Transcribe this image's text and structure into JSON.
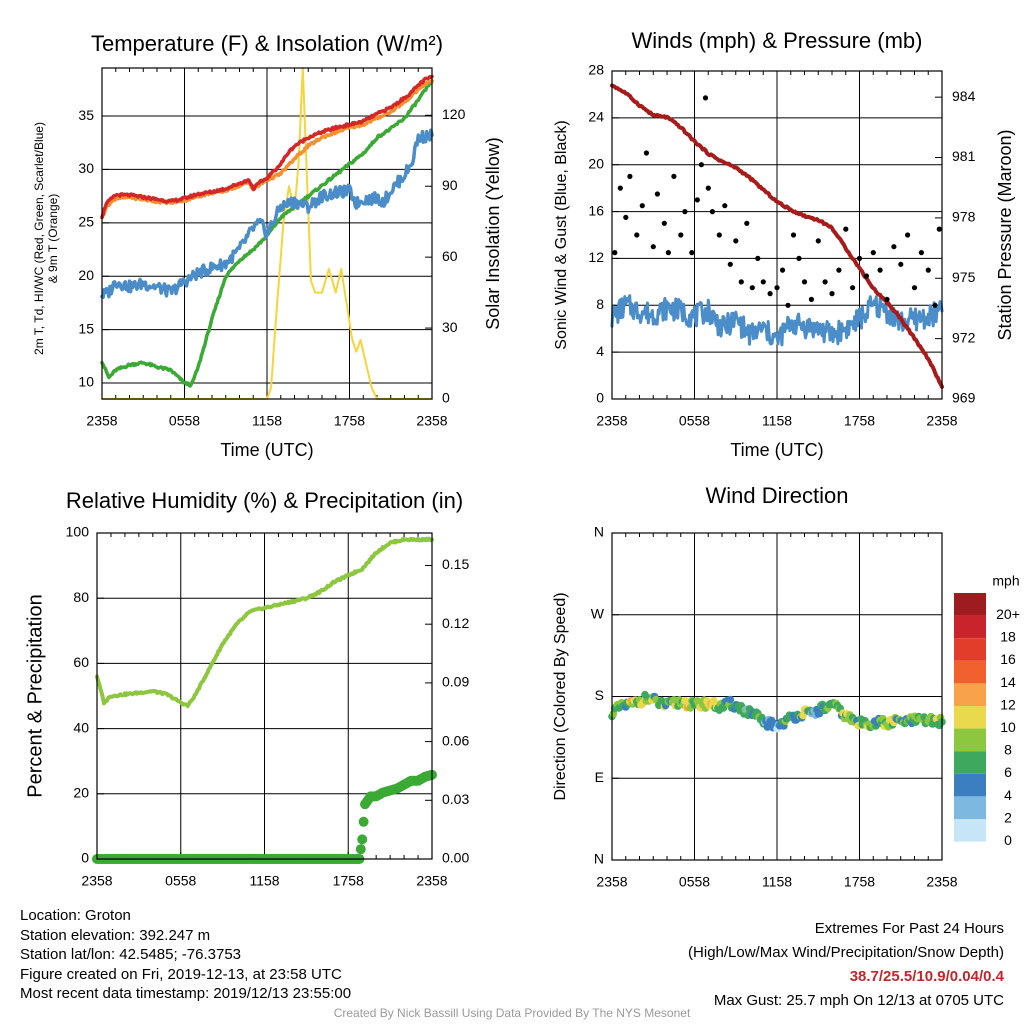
{
  "chart_data": [
    {
      "type": "line",
      "title": "Temperature (F) & Insolation (W/m²)",
      "xlabel": "Time (UTC)",
      "ylabel_left": "2m T, Td, HI/WC (Red, Green, Scarlet/Blue) & 9m T (Orange)",
      "ylabel_right": "Solar Insolation (Yellow)",
      "x_ticks": [
        "2358",
        "0558",
        "1158",
        "1758",
        "2358"
      ],
      "x_range_hours": [
        0,
        24
      ],
      "ylim_left": [
        8.5,
        39.5
      ],
      "yticks_left": [
        10,
        15,
        20,
        25,
        30,
        35
      ],
      "ylim_right": [
        0,
        140
      ],
      "yticks_right": [
        0,
        30,
        60,
        90,
        120
      ],
      "grid": true,
      "series": [
        {
          "name": "2m T",
          "color": "#d62728",
          "axis": "left",
          "x": [
            0,
            0.3,
            1,
            2,
            3,
            4,
            5,
            6,
            7,
            8,
            9,
            10,
            10.7,
            11,
            11.5,
            12,
            13,
            13.5,
            14,
            15,
            16,
            17,
            18,
            19,
            20,
            21,
            22,
            22.5,
            23,
            23.5,
            24
          ],
          "y": [
            25.6,
            26.8,
            27.6,
            27.6,
            27.4,
            27.2,
            27.0,
            27.3,
            27.7,
            27.9,
            28.2,
            28.7,
            29.0,
            28.2,
            28.8,
            29.2,
            30.5,
            31.5,
            32.2,
            33.0,
            33.5,
            33.9,
            34.2,
            34.5,
            35.2,
            35.8,
            36.7,
            37.2,
            37.9,
            38.4,
            38.7
          ]
        },
        {
          "name": "9m T",
          "color": "#f3912f",
          "axis": "left",
          "x": [
            0,
            0.3,
            1,
            2,
            3,
            4,
            5,
            6,
            7,
            8,
            9,
            10,
            10.7,
            11,
            11.5,
            12,
            13,
            13.5,
            14,
            15,
            16,
            17,
            18,
            19,
            20,
            21,
            22,
            22.5,
            23,
            23.5,
            24
          ],
          "y": [
            25.4,
            26.5,
            27.3,
            27.4,
            27.2,
            27.0,
            26.9,
            27.1,
            27.5,
            27.8,
            28.0,
            28.5,
            28.8,
            28.1,
            28.6,
            29.0,
            29.6,
            30.3,
            31.0,
            32.2,
            33.0,
            33.5,
            33.9,
            34.2,
            34.8,
            35.4,
            36.3,
            36.9,
            37.5,
            38.0,
            38.3
          ]
        },
        {
          "name": "Td",
          "color": "#3aaa35",
          "axis": "left",
          "x": [
            0,
            0.5,
            1,
            2,
            3,
            4,
            5,
            6,
            6.5,
            7,
            8,
            9,
            10,
            11,
            12,
            13,
            14,
            15,
            16,
            17,
            18,
            19,
            19.5,
            20,
            21,
            22,
            23,
            24
          ],
          "y": [
            12.0,
            10.5,
            11.2,
            11.7,
            11.9,
            11.5,
            11.2,
            10.0,
            9.8,
            11.5,
            16.0,
            20.0,
            21.5,
            22.5,
            23.8,
            25.5,
            26.5,
            27.5,
            28.5,
            29.5,
            30.5,
            31.5,
            32.2,
            33.0,
            33.8,
            34.8,
            36.5,
            38.3
          ]
        },
        {
          "name": "HI/WC",
          "color": "#4a8dc8",
          "axis": "left",
          "x": [
            0,
            0.5,
            1,
            2,
            3,
            4,
            5,
            6,
            7,
            8,
            9,
            10,
            10.5,
            11,
            11.5,
            12,
            13,
            14,
            15,
            16,
            17,
            18,
            18.5,
            19,
            20,
            20.5,
            21,
            22,
            22.5,
            23,
            24
          ],
          "y": [
            18.2,
            18.5,
            19.5,
            19.0,
            19.3,
            19.0,
            18.5,
            19.5,
            20.3,
            20.8,
            21.2,
            22.5,
            23.5,
            24.5,
            25.0,
            24.0,
            26.5,
            27.0,
            26.5,
            27.5,
            27.8,
            28.0,
            26.8,
            27.2,
            27.3,
            27.0,
            28.0,
            29.5,
            30.5,
            33.0,
            33.2
          ]
        },
        {
          "name": "Solar Insolation",
          "color": "#f5d53b",
          "axis": "right",
          "x": [
            0,
            12,
            12.3,
            12.6,
            13,
            13.2,
            13.6,
            14,
            14.3,
            14.6,
            15,
            15.2,
            15.5,
            16,
            16.5,
            17,
            17.4,
            17.8,
            18.2,
            18.5,
            18.8,
            19.2,
            19.6,
            20,
            24
          ],
          "y": [
            0,
            0,
            5,
            30,
            60,
            75,
            90,
            80,
            100,
            140,
            80,
            50,
            45,
            45,
            55,
            45,
            55,
            40,
            25,
            20,
            25,
            15,
            5,
            0,
            0
          ]
        }
      ]
    },
    {
      "type": "line",
      "title": "Winds (mph) & Pressure (mb)",
      "xlabel": "Time (UTC)",
      "ylabel_left": "Sonic Wind & Gust (Blue, Black)",
      "ylabel_right": "Station Pressure (Maroon)",
      "x_ticks": [
        "2358",
        "0558",
        "1158",
        "1758",
        "2358"
      ],
      "x_range_hours": [
        0,
        24
      ],
      "ylim_left": [
        0,
        28
      ],
      "yticks_left": [
        0,
        4,
        8,
        12,
        16,
        20,
        24,
        28
      ],
      "ylim_right": [
        969,
        985.3
      ],
      "yticks_right": [
        969,
        972,
        975,
        978,
        981,
        984
      ],
      "grid": true,
      "series": [
        {
          "name": "Sonic Wind",
          "color": "#4a8dc8",
          "axis": "left",
          "x": [
            0,
            1,
            2,
            3,
            4,
            5,
            6,
            7,
            8,
            9,
            10,
            11,
            12,
            13,
            14,
            15,
            16,
            17,
            18,
            19,
            20,
            21,
            22,
            23,
            24
          ],
          "y": [
            7.0,
            8.0,
            7.5,
            7.2,
            7.8,
            7.5,
            7.0,
            7.6,
            6.0,
            6.8,
            5.5,
            6.0,
            5.0,
            6.5,
            6.2,
            6.0,
            5.5,
            6.0,
            6.8,
            8.0,
            7.5,
            6.5,
            6.8,
            7.0,
            7.5
          ]
        },
        {
          "name": "Gust",
          "color": "#000000",
          "axis": "left",
          "x": [
            0.2,
            0.6,
            1.0,
            1.3,
            1.8,
            2.2,
            2.5,
            3.0,
            3.3,
            3.8,
            4.1,
            4.5,
            5.0,
            5.3,
            5.8,
            6.2,
            6.5,
            6.8,
            7.0,
            7.3,
            7.8,
            8.2,
            8.6,
            9.0,
            9.4,
            9.8,
            10.2,
            10.6,
            11.0,
            11.5,
            12.0,
            12.4,
            12.8,
            13.2,
            13.6,
            14.0,
            14.5,
            15.0,
            15.5,
            16.0,
            16.5,
            17.0,
            17.5,
            18.0,
            18.5,
            19.0,
            19.5,
            20.0,
            20.5,
            21.0,
            21.5,
            22.0,
            22.5,
            23.0,
            23.5,
            23.8
          ],
          "y": [
            12.5,
            18.0,
            15.5,
            19.0,
            14.0,
            16.5,
            21.0,
            13.0,
            17.5,
            15.0,
            12.5,
            19.0,
            14.0,
            16.0,
            12.5,
            17.0,
            20.0,
            25.7,
            18.0,
            16.0,
            14.0,
            16.5,
            11.5,
            13.5,
            10.0,
            15.0,
            9.5,
            12.0,
            10.0,
            9.0,
            9.5,
            11.0,
            8.0,
            14.0,
            12.0,
            10.0,
            8.5,
            13.5,
            10.0,
            9.0,
            11.0,
            14.5,
            9.5,
            12.0,
            10.5,
            12.5,
            11.0,
            8.5,
            13.0,
            11.5,
            14.0,
            9.5,
            12.5,
            11.0,
            8.0,
            14.5
          ]
        },
        {
          "name": "Station Pressure",
          "color": "#a81b1b",
          "axis": "right",
          "x": [
            0,
            1,
            2,
            3,
            4,
            5,
            6,
            7,
            8,
            9,
            10,
            11,
            12,
            13,
            14,
            15,
            16,
            17,
            18,
            19,
            20,
            21,
            22,
            23,
            24
          ],
          "y": [
            984.6,
            984.2,
            983.6,
            983.1,
            983.0,
            982.5,
            981.8,
            981.2,
            980.8,
            980.5,
            980.0,
            979.4,
            978.8,
            978.4,
            978.1,
            977.9,
            977.5,
            976.5,
            975.5,
            974.5,
            973.8,
            973.0,
            972.0,
            971.0,
            969.6
          ]
        }
      ]
    },
    {
      "type": "line",
      "title": "Relative Humidity (%) & Precipitation (in)",
      "xlabel": "",
      "ylabel_left": "Percent & Precipitation",
      "x_ticks": [
        "2358",
        "0558",
        "1158",
        "1758",
        "2358"
      ],
      "x_range_hours": [
        0,
        24
      ],
      "ylim_left": [
        0,
        100
      ],
      "yticks_left": [
        0,
        20,
        40,
        60,
        80,
        100
      ],
      "ylim_right": [
        0,
        0.1666
      ],
      "yticks_right": [
        "0.00",
        "0.03",
        "0.06",
        "0.09",
        "0.12",
        "0.15"
      ],
      "grid": true,
      "series": [
        {
          "name": "Relative Humidity",
          "color": "#8dc63f",
          "axis": "left",
          "x": [
            0,
            0.5,
            1,
            2,
            3,
            4,
            5,
            6,
            6.5,
            7,
            8,
            9,
            10,
            11,
            12,
            13,
            14,
            15,
            16,
            17,
            18,
            19,
            20,
            21,
            22,
            23,
            24
          ],
          "y": [
            56,
            48,
            50,
            50.5,
            51,
            51.5,
            50.5,
            48,
            47,
            50,
            58,
            66,
            72,
            76,
            77,
            78,
            79,
            80,
            82,
            85,
            87,
            89,
            94,
            97,
            98,
            98,
            98
          ]
        },
        {
          "name": "Precipitation",
          "color": "#3aaa35",
          "axis": "right",
          "x": [
            0,
            18.8,
            19.0,
            19.2,
            19.6,
            20.0,
            20.5,
            21,
            21.5,
            22,
            22.5,
            23,
            23.5,
            24
          ],
          "y": [
            0.0,
            0.0,
            0.01,
            0.028,
            0.032,
            0.032,
            0.034,
            0.035,
            0.036,
            0.038,
            0.04,
            0.04,
            0.042,
            0.043
          ]
        }
      ]
    },
    {
      "type": "scatter",
      "title": "Wind Direction",
      "xlabel": "",
      "ylabel": "Direction (Colored By Speed)",
      "x_ticks": [
        "2358",
        "0558",
        "1158",
        "1758",
        "2358"
      ],
      "x_range_hours": [
        0,
        24
      ],
      "y_ticks": [
        "N",
        "E",
        "S",
        "W",
        "N"
      ],
      "ylim_deg": [
        0,
        360
      ],
      "grid": true,
      "colorbar": {
        "title": "mph",
        "labels": [
          "20+",
          "18",
          "16",
          "14",
          "12",
          "10",
          "8",
          "6",
          "4",
          "2",
          "0"
        ],
        "colors": [
          "#9e1b1f",
          "#c9242b",
          "#e23c2a",
          "#f0612e",
          "#f8a24a",
          "#ead94c",
          "#8dc63f",
          "#3ea95e",
          "#3b7fc0",
          "#7db8e0",
          "#c6e5f7"
        ]
      },
      "points": {
        "x": [
          0,
          0.5,
          1,
          1.5,
          2,
          2.5,
          3,
          3.5,
          4,
          4.5,
          5,
          5.5,
          6,
          6.5,
          7,
          7.5,
          8,
          8.5,
          9,
          9.5,
          10,
          10.5,
          11,
          11.5,
          12,
          12.5,
          13,
          13.5,
          14,
          14.5,
          15,
          15.5,
          16,
          16.5,
          17,
          17.5,
          18,
          18.5,
          19,
          19.5,
          20,
          20.5,
          21,
          21.5,
          22,
          22.5,
          23,
          23.5,
          24
        ],
        "y_deg": [
          163,
          167,
          170,
          172,
          175,
          178,
          176,
          172,
          170,
          172,
          174,
          172,
          170,
          171,
          173,
          170,
          168,
          172,
          170,
          166,
          162,
          158,
          152,
          150,
          148,
          152,
          156,
          160,
          162,
          160,
          165,
          168,
          170,
          166,
          158,
          154,
          150,
          152,
          150,
          152,
          150,
          152,
          153,
          152,
          154,
          153,
          154,
          153,
          152
        ],
        "speed": [
          6,
          8,
          7,
          10,
          8,
          9,
          7,
          8,
          6,
          7,
          8,
          9,
          7,
          8,
          10,
          7,
          8,
          6,
          5,
          7,
          4,
          6,
          3,
          4,
          2,
          5,
          4,
          6,
          8,
          5,
          4,
          6,
          5,
          7,
          8,
          6,
          8,
          7,
          6,
          7,
          8,
          7,
          6,
          7,
          6,
          7,
          6,
          7,
          6
        ]
      }
    }
  ],
  "info": {
    "location": "Location: Groton",
    "elevation": "Station elevation: 392.247 m",
    "latlon": "Station lat/lon: 42.5485; -76.3753",
    "created": "Figure created on Fri, 2019-12-13, at 23:58 UTC",
    "recent": "Most recent data timestamp: 2019/12/13 23:55:00"
  },
  "extremes": {
    "title": "Extremes For Past 24 Hours",
    "subtitle": "(High/Low/Max Wind/Precipitation/Snow Depth)",
    "values": "38.7/25.5/10.9/0.04/0.4",
    "max_gust": "Max Gust: 25.7 mph On 12/13 at 0705 UTC"
  },
  "credit": "Created By Nick Bassill Using Data Provided By The NYS Mesonet"
}
